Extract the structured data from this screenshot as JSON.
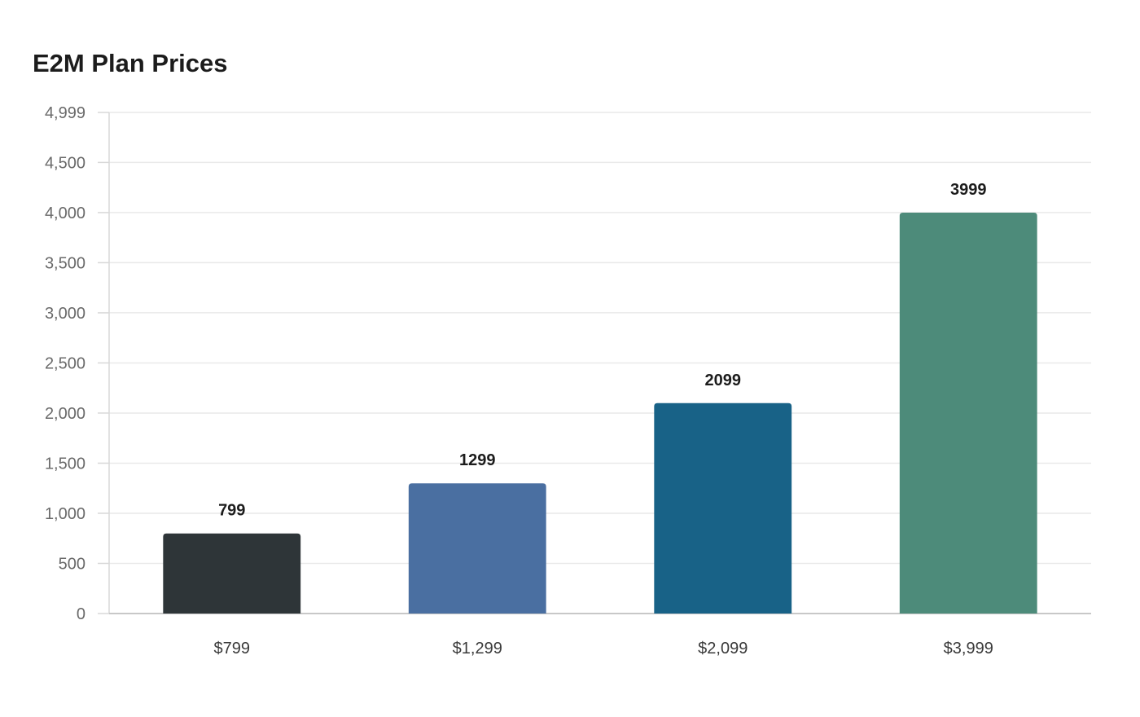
{
  "chart_data": {
    "type": "bar",
    "title": "E2M Plan Prices",
    "categories": [
      "$799",
      "$1,299",
      "$2,099",
      "$3,999"
    ],
    "values": [
      799,
      1299,
      2099,
      3999
    ],
    "value_labels": [
      "799",
      "1299",
      "2099",
      "3999"
    ],
    "bar_colors": [
      "#2e3538",
      "#4a6fa1",
      "#186287",
      "#4d8b7a"
    ],
    "ylim": [
      0,
      4999
    ],
    "yticks": [
      0,
      500,
      1000,
      1500,
      2000,
      2500,
      3000,
      3500,
      4000,
      4500,
      4999
    ],
    "ytick_labels": [
      "0",
      "500",
      "1,000",
      "1,500",
      "2,000",
      "2,500",
      "3,000",
      "3,500",
      "4,000",
      "4,500",
      "4,999"
    ],
    "xlabel": "",
    "ylabel": "",
    "grid": true,
    "legend": "none"
  }
}
